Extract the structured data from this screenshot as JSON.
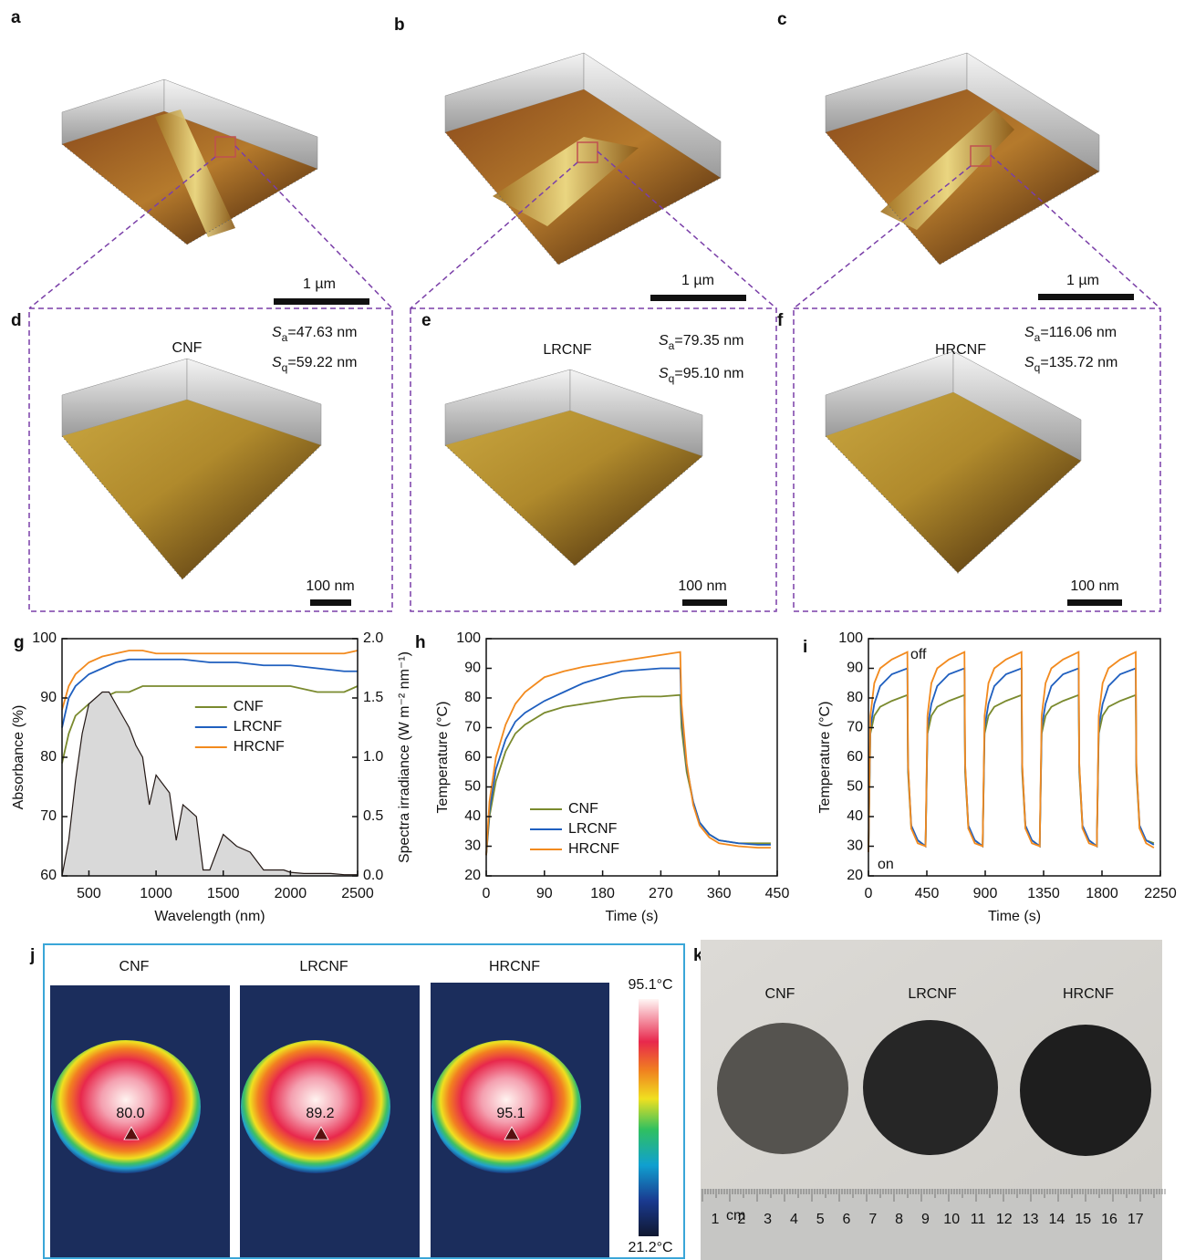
{
  "panel_letters": [
    "a",
    "b",
    "c",
    "d",
    "e",
    "f",
    "g",
    "h",
    "i",
    "j",
    "k"
  ],
  "afm": {
    "scale_top": "1 µm",
    "scale_zoom": "100 nm",
    "roughness_symbol": "S",
    "sa_sub": "a",
    "sq_sub": "q",
    "samples": [
      {
        "name": "CNF",
        "sa": "=47.63 nm",
        "sq": "=59.22 nm"
      },
      {
        "name": "LRCNF",
        "sa": "=79.35 nm",
        "sq": "=95.10 nm"
      },
      {
        "name": "HRCNF",
        "sa": "=116.06 nm",
        "sq": "=135.72 nm"
      }
    ]
  },
  "chart_data": [
    {
      "type": "line",
      "xlabel": "Wavelength (nm)",
      "ylabel": "Absorbance (%)",
      "y2label": "Spectra irradiance (W m⁻² nm⁻¹)",
      "x": [
        300,
        350,
        400,
        500,
        600,
        700,
        800,
        900,
        1000,
        1200,
        1400,
        1600,
        1800,
        2000,
        2200,
        2400,
        2500
      ],
      "series": [
        {
          "name": "CNF",
          "color": "#7a8a2e",
          "values": [
            79,
            84,
            87,
            89,
            90,
            91,
            91,
            92,
            92,
            92,
            92,
            92,
            92,
            92,
            91,
            91,
            92
          ]
        },
        {
          "name": "LRCNF",
          "color": "#1f5fbf",
          "values": [
            85,
            90,
            92,
            94,
            95,
            96,
            96.5,
            96.5,
            96.5,
            96.5,
            96,
            96,
            95.5,
            95.5,
            95,
            94.5,
            94.5
          ]
        },
        {
          "name": "HRCNF",
          "color": "#f28a1e",
          "values": [
            88,
            92,
            94,
            96,
            97,
            97.5,
            98,
            98,
            97.5,
            97.5,
            97.5,
            97.5,
            97.5,
            97.5,
            97.5,
            97.5,
            98
          ]
        },
        {
          "axis": "y2",
          "color": "#231815",
          "fill": "#d9d9d9",
          "x": [
            300,
            350,
            400,
            450,
            500,
            550,
            600,
            650,
            700,
            750,
            800,
            850,
            900,
            950,
            1000,
            1100,
            1150,
            1200,
            1300,
            1350,
            1400,
            1500,
            1600,
            1700,
            1800,
            1850,
            1950,
            2000,
            2100,
            2200,
            2300,
            2400,
            2500
          ],
          "values": [
            0,
            0.3,
            0.8,
            1.2,
            1.45,
            1.5,
            1.55,
            1.55,
            1.45,
            1.35,
            1.25,
            1.1,
            1.0,
            0.6,
            0.85,
            0.7,
            0.3,
            0.6,
            0.5,
            0.05,
            0.05,
            0.35,
            0.25,
            0.2,
            0.05,
            0.05,
            0.05,
            0.03,
            0.02,
            0.02,
            0.02,
            0.01,
            0.01
          ]
        }
      ],
      "xlim": [
        300,
        2500
      ],
      "xticks": [
        500,
        1000,
        1500,
        2000,
        2500
      ],
      "ylim": [
        60,
        100
      ],
      "yticks": [
        60,
        70,
        80,
        90,
        100
      ],
      "y2lim": [
        0,
        2
      ],
      "y2ticks": [
        {
          "value": 0,
          "label": "0.0"
        },
        0.5,
        {
          "value": 1,
          "label": "1.0"
        },
        1.5,
        {
          "value": 2,
          "label": "2.0"
        }
      ],
      "grid": false,
      "legend": "center"
    },
    {
      "type": "line",
      "xlabel": "Time (s)",
      "ylabel": "Temperature (°C)",
      "x": [
        0,
        5,
        15,
        30,
        45,
        60,
        90,
        120,
        150,
        180,
        210,
        240,
        270,
        300,
        302,
        310,
        320,
        330,
        345,
        360,
        390,
        420,
        440
      ],
      "series": [
        {
          "name": "CNF",
          "color": "#7a8a2e",
          "values": [
            27,
            40,
            52,
            62,
            68,
            71,
            75,
            77,
            78,
            79,
            80,
            80.5,
            80.5,
            81,
            70,
            55,
            45,
            38,
            34,
            32,
            31,
            31,
            31
          ]
        },
        {
          "name": "LRCNF",
          "color": "#1f5fbf",
          "values": [
            27,
            42,
            56,
            66,
            72,
            75,
            79,
            82,
            85,
            87,
            89,
            89.5,
            90,
            90,
            75,
            57,
            45,
            38,
            34,
            32,
            31,
            30.5,
            30.5
          ]
        },
        {
          "name": "HRCNF",
          "color": "#f28a1e",
          "values": [
            27,
            45,
            60,
            71,
            78,
            82,
            87,
            89,
            90.5,
            91.5,
            92.5,
            93.5,
            94.5,
            95.5,
            78,
            58,
            44,
            37,
            33,
            31,
            30,
            29.5,
            29.5
          ]
        }
      ],
      "xlim": [
        0,
        450
      ],
      "xticks": [
        0,
        90,
        180,
        270,
        360,
        450
      ],
      "ylim": [
        20,
        100
      ],
      "yticks": [
        20,
        30,
        40,
        50,
        60,
        70,
        80,
        90,
        100
      ],
      "grid": false,
      "legend": "lower left"
    },
    {
      "type": "line",
      "xlabel": "Time (s)",
      "ylabel": "Temperature (°C)",
      "annotations": [
        "off",
        "on"
      ],
      "x": [
        0,
        15,
        45,
        90,
        180,
        300,
        305,
        330,
        380,
        440,
        455,
        485,
        530,
        620,
        740,
        745,
        770,
        820,
        880,
        895,
        925,
        970,
        1060,
        1180,
        1185,
        1210,
        1260,
        1320,
        1335,
        1365,
        1410,
        1500,
        1620,
        1625,
        1650,
        1700,
        1760,
        1775,
        1805,
        1850,
        1940,
        2060,
        2065,
        2090,
        2140,
        2200
      ],
      "series": [
        {
          "color": "#7a8a2e",
          "values": [
            28,
            68,
            74,
            77,
            79,
            81,
            55,
            36,
            32,
            30,
            68,
            74,
            77,
            79,
            81,
            55,
            36,
            32,
            30,
            68,
            74,
            77,
            79,
            81,
            55,
            36,
            32,
            30,
            68,
            74,
            77,
            79,
            81,
            55,
            36,
            32,
            30,
            68,
            74,
            77,
            79,
            81,
            55,
            36,
            32,
            31
          ]
        },
        {
          "color": "#1f5fbf",
          "values": [
            28,
            70,
            78,
            84,
            88,
            90,
            57,
            37,
            32,
            30,
            70,
            78,
            84,
            88,
            90,
            57,
            37,
            32,
            30,
            70,
            78,
            84,
            88,
            90,
            57,
            37,
            32,
            30,
            70,
            78,
            84,
            88,
            90,
            57,
            37,
            32,
            30,
            70,
            78,
            84,
            88,
            90,
            57,
            37,
            32,
            30.5
          ]
        },
        {
          "color": "#f28a1e",
          "values": [
            28,
            74,
            85,
            90,
            93,
            95.5,
            58,
            36,
            31,
            30,
            74,
            85,
            90,
            93,
            95.5,
            58,
            36,
            31,
            30,
            74,
            85,
            90,
            93,
            95.5,
            58,
            36,
            31,
            30,
            74,
            85,
            90,
            93,
            95.5,
            58,
            36,
            31,
            30,
            74,
            85,
            90,
            93,
            95.5,
            58,
            36,
            31,
            29.5
          ]
        }
      ],
      "xlim": [
        0,
        2250
      ],
      "xticks": [
        0,
        450,
        900,
        1350,
        1800,
        2250
      ],
      "ylim": [
        20,
        100
      ],
      "yticks": [
        20,
        30,
        40,
        50,
        60,
        70,
        80,
        90,
        100
      ],
      "grid": false,
      "legend": "none"
    }
  ],
  "thermal": {
    "samples": [
      {
        "name": "CNF",
        "temp": "80.0"
      },
      {
        "name": "LRCNF",
        "temp": "89.2"
      },
      {
        "name": "HRCNF",
        "temp": "95.1"
      }
    ],
    "max": "95.1°C",
    "min": "21.2°C"
  },
  "photo": {
    "samples": [
      "CNF",
      "LRCNF",
      "HRCNF"
    ],
    "ruler_unit": "cm",
    "ruler_numbers": [
      "1",
      "2",
      "3",
      "4",
      "5",
      "6",
      "7",
      "8",
      "9",
      "10",
      "11",
      "12",
      "13",
      "14",
      "15",
      "16",
      "17"
    ]
  }
}
